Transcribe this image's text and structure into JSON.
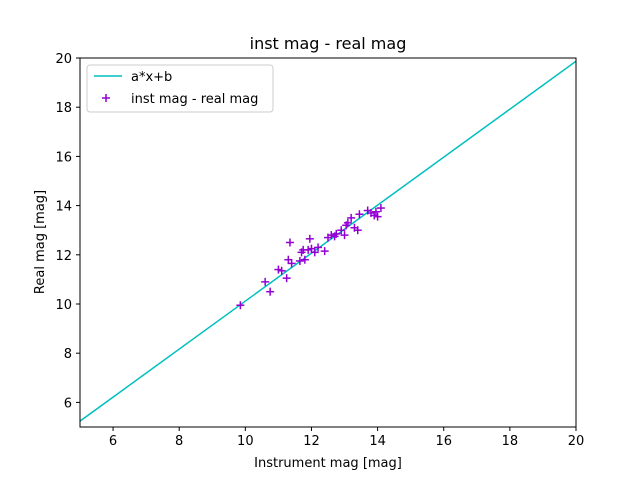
{
  "chart_data": {
    "type": "scatter",
    "title": "inst mag - real mag",
    "xlabel": "Instrument mag [mag]",
    "ylabel": "Real mag [mag]",
    "xlim": [
      5,
      20
    ],
    "ylim": [
      5,
      20
    ],
    "xticks": [
      6,
      8,
      10,
      12,
      14,
      16,
      18,
      20
    ],
    "yticks": [
      6,
      8,
      10,
      12,
      14,
      16,
      18,
      20
    ],
    "grid": false,
    "legend_position": "top-left",
    "series": [
      {
        "name": "a*x+b",
        "kind": "line",
        "color": "#00bfbf",
        "x": [
          5,
          20
        ],
        "y": [
          5.24,
          19.87
        ]
      },
      {
        "name": "inst mag - real mag",
        "kind": "scatter",
        "marker": "+",
        "color": "#9400d3",
        "x": [
          9.85,
          10.6,
          10.75,
          11.0,
          11.1,
          11.25,
          11.3,
          11.35,
          11.4,
          11.65,
          11.7,
          11.75,
          11.8,
          11.9,
          11.95,
          12.0,
          12.1,
          12.2,
          12.4,
          12.5,
          12.6,
          12.7,
          12.75,
          12.9,
          13.0,
          13.05,
          13.1,
          13.2,
          13.3,
          13.4,
          13.45,
          13.7,
          13.8,
          13.9,
          13.95,
          14.0,
          14.1
        ],
        "y": [
          9.95,
          10.9,
          10.5,
          11.4,
          11.35,
          11.05,
          11.8,
          12.5,
          11.65,
          11.75,
          12.1,
          12.2,
          11.8,
          12.2,
          12.65,
          12.25,
          12.1,
          12.3,
          12.15,
          12.7,
          12.8,
          12.75,
          12.85,
          13.0,
          12.8,
          13.2,
          13.3,
          13.5,
          13.1,
          13.0,
          13.65,
          13.8,
          13.7,
          13.6,
          13.75,
          13.55,
          13.9
        ]
      }
    ]
  }
}
